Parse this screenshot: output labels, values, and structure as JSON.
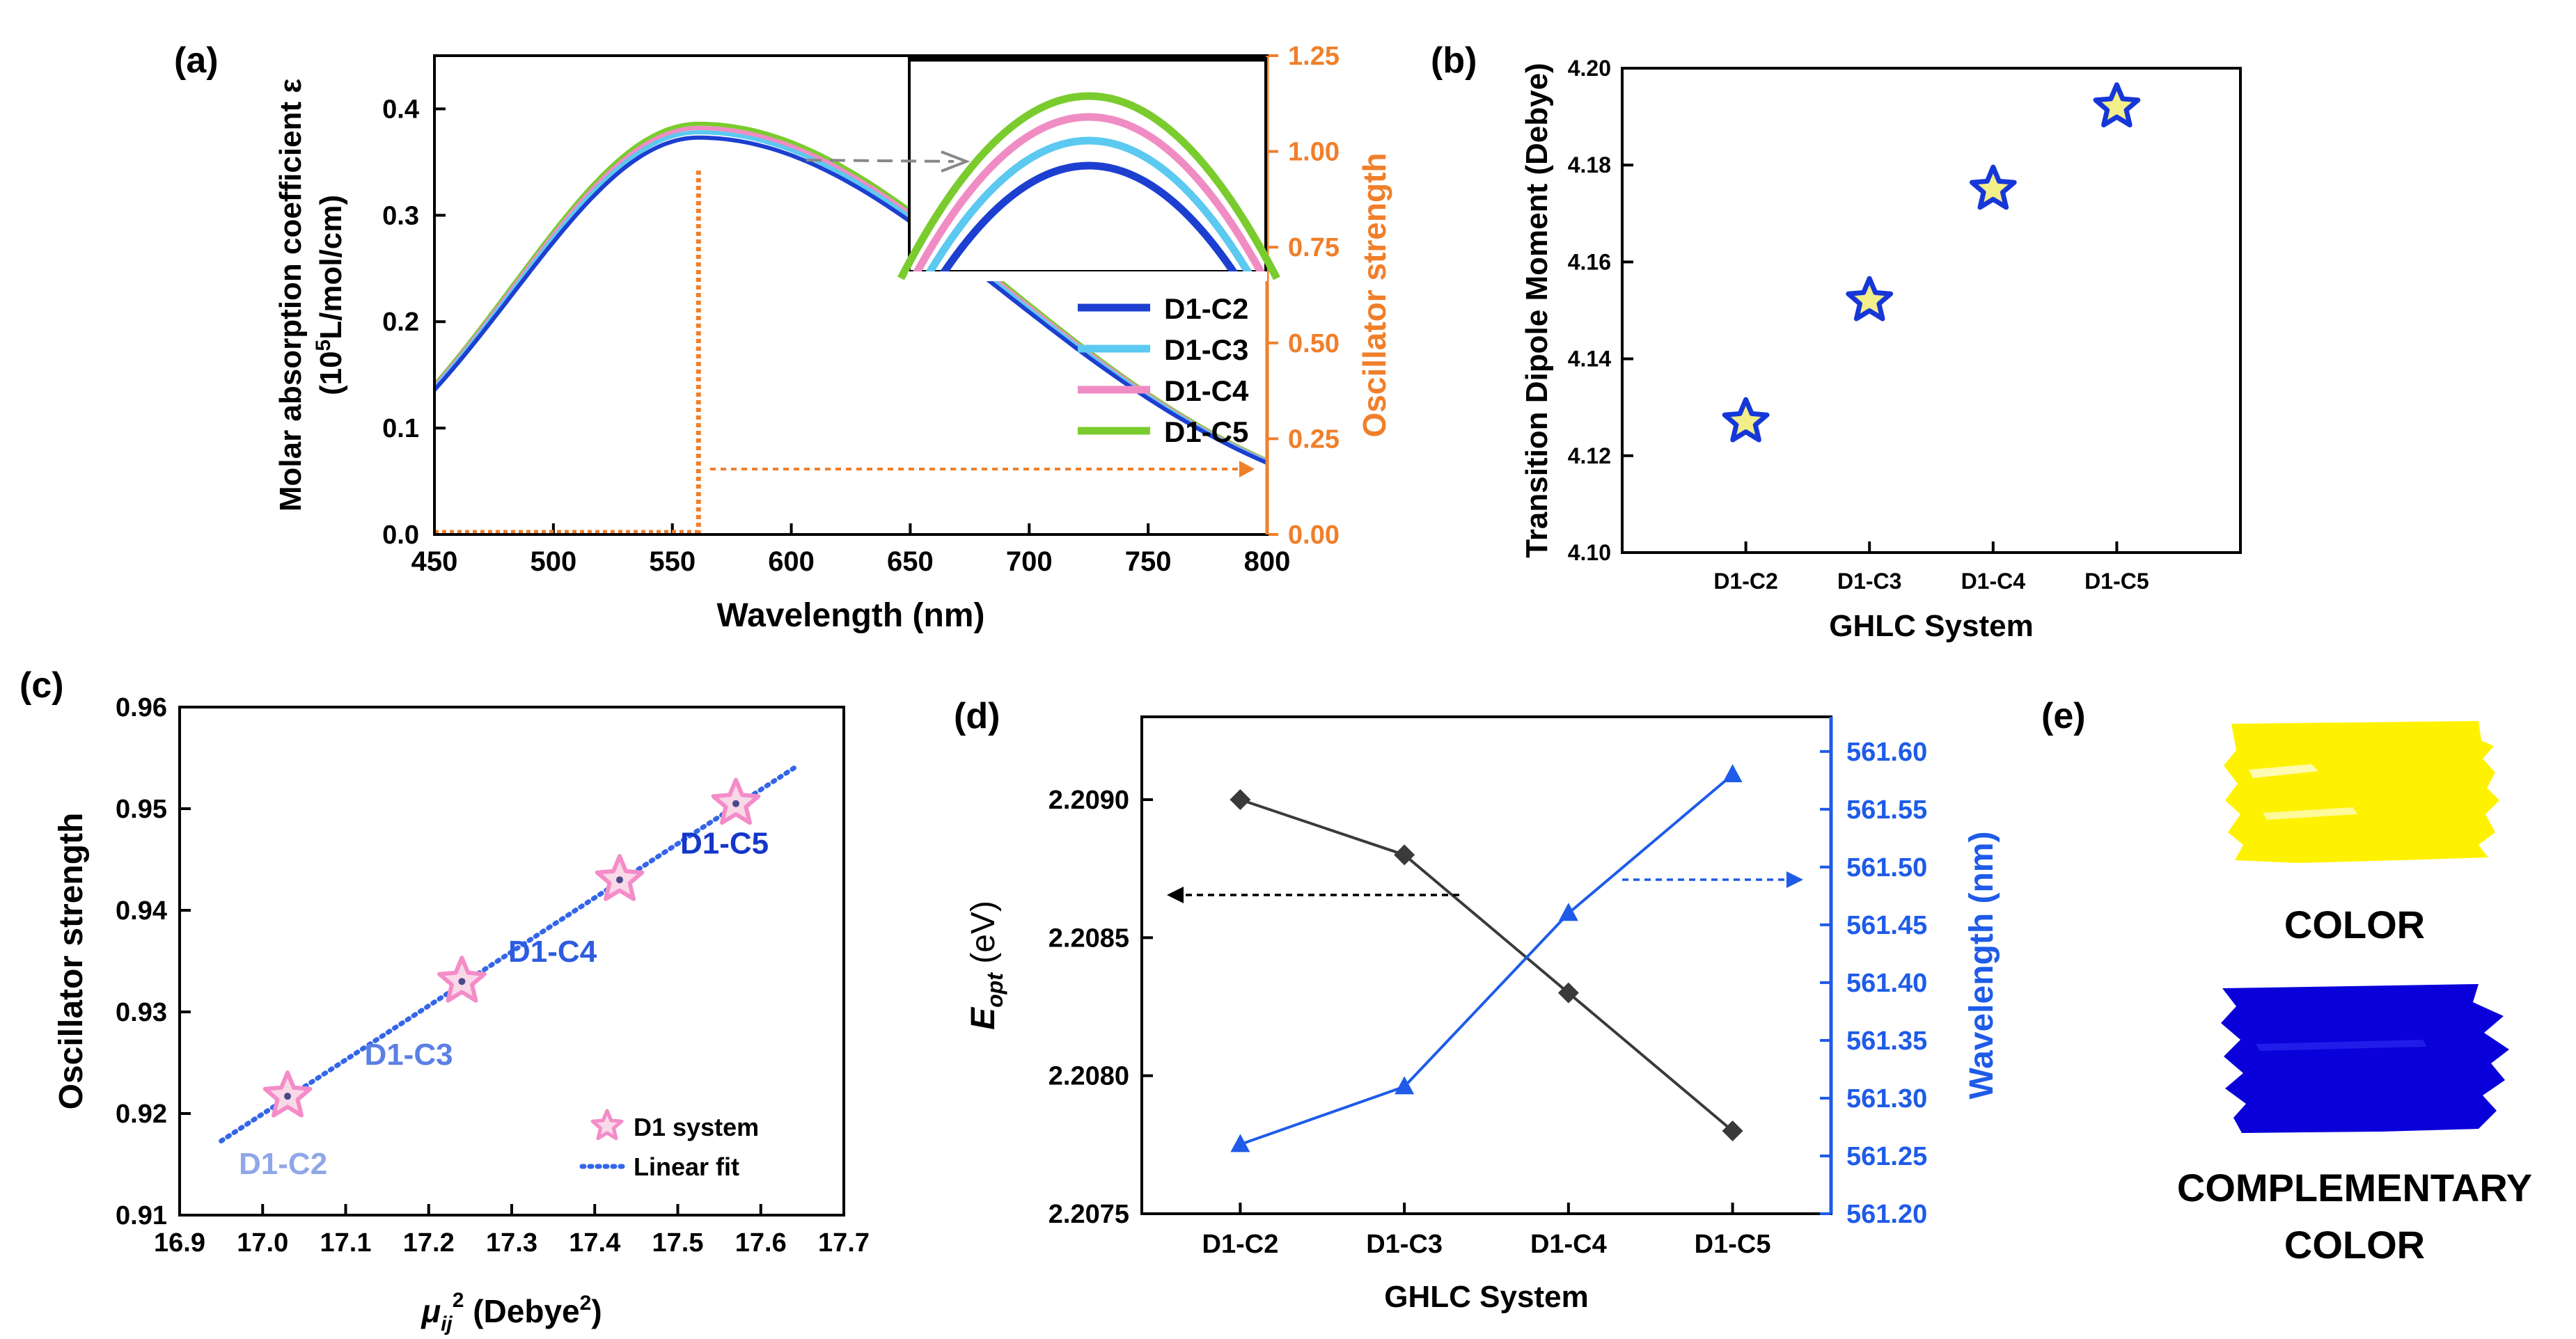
{
  "colors": {
    "axis": "#000000",
    "orange": "#F07F2A",
    "blue_star": "#1637D8",
    "star_fill": "#F2EE8A",
    "pink": "#F48CC8",
    "fit_blue": "#3466E8",
    "lbl_c2": "#8FA6E8",
    "lbl_c3": "#5B7FE4",
    "lbl_c4": "#2E5CE0",
    "lbl_c5": "#1437C9",
    "dark": "#3A3A3A",
    "blue_line": "#1E5BE8",
    "yellow": "#FFF200",
    "navy": "#0A00D9",
    "c2": "#1C3FD0",
    "c3": "#5CC9F0",
    "c4": "#F08CC4",
    "c5": "#7ACC2E"
  },
  "chart_data": [
    {
      "id": "a",
      "panel_label": "(a)",
      "type": "line",
      "xlabel": "Wavelength (nm)",
      "ylabel_line1": "Molar absorption coefficient ε",
      "ylabel_line2_pre": "(10",
      "ylabel_line2_sup": "5",
      "ylabel_line2_post": "L/mol/cm)",
      "y2label": "Oscillator strength",
      "xlim": [
        450,
        800
      ],
      "ylim": [
        0,
        0.45
      ],
      "y2lim": [
        0,
        1.25
      ],
      "xticks": [
        "450",
        "500",
        "550",
        "600",
        "650",
        "700",
        "750",
        "800"
      ],
      "yticks": [
        "0.0",
        "0.1",
        "0.2",
        "0.3",
        "0.4"
      ],
      "y2ticks": [
        "0.00",
        "0.25",
        "0.50",
        "0.75",
        "1.00",
        "1.25"
      ],
      "peak_nm": 561,
      "series": [
        {
          "name": "D1-C2",
          "peak": 0.373
        },
        {
          "name": "D1-C3",
          "peak": 0.378
        },
        {
          "name": "D1-C4",
          "peak": 0.382
        },
        {
          "name": "D1-C5",
          "peak": 0.386
        }
      ],
      "oscillator_line": {
        "x": 561,
        "value": 0.95
      }
    },
    {
      "id": "b",
      "panel_label": "(b)",
      "type": "scatter",
      "xlabel": "GHLC System",
      "ylabel": "Transition Dipole Moment (Debye)",
      "categories": [
        "D1-C2",
        "D1-C3",
        "D1-C4",
        "D1-C5"
      ],
      "values": [
        4.127,
        4.152,
        4.175,
        4.192
      ],
      "ylim": [
        4.1,
        4.2
      ],
      "yticks": [
        "4.10",
        "4.12",
        "4.14",
        "4.16",
        "4.18",
        "4.20"
      ]
    },
    {
      "id": "c",
      "panel_label": "(c)",
      "type": "scatter",
      "xlabel_sym": "μ",
      "xlabel_sub": "ij",
      "xlabel_sup": "2",
      "xlabel_rest": " (Debye",
      "xlabel_sup2": "2",
      "xlabel_end": ")",
      "ylabel": "Oscillator strength",
      "x": [
        17.03,
        17.24,
        17.43,
        17.57
      ],
      "y": [
        0.9217,
        0.933,
        0.943,
        0.9505
      ],
      "point_labels": [
        "D1-C2",
        "D1-C3",
        "D1-C4",
        "D1-C5"
      ],
      "fit": {
        "x": [
          16.95,
          17.64
        ],
        "y": [
          0.9173,
          0.954
        ]
      },
      "xlim": [
        16.9,
        17.7
      ],
      "ylim": [
        0.91,
        0.96
      ],
      "xticks": [
        "16.9",
        "17.0",
        "17.1",
        "17.2",
        "17.3",
        "17.4",
        "17.5",
        "17.6",
        "17.7"
      ],
      "yticks": [
        "0.91",
        "0.92",
        "0.93",
        "0.94",
        "0.95",
        "0.96"
      ],
      "legend": [
        {
          "label": "D1 system"
        },
        {
          "label": "Linear fit"
        }
      ]
    },
    {
      "id": "d",
      "panel_label": "(d)",
      "type": "line",
      "xlabel": "GHLC System",
      "ylabel_main": "E",
      "ylabel_sub": "opt",
      "ylabel_rest": " (eV)",
      "y2label": "Wavelength (nm)",
      "categories": [
        "D1-C2",
        "D1-C3",
        "D1-C4",
        "D1-C5"
      ],
      "series": [
        {
          "name": "Eopt",
          "values": [
            2.209,
            2.2088,
            2.2083,
            2.2078
          ]
        },
        {
          "name": "Wavelength",
          "values": [
            561.26,
            561.31,
            561.46,
            561.58
          ]
        }
      ],
      "ylim": [
        2.2075,
        2.2093
      ],
      "y2lim": [
        561.2,
        561.63
      ],
      "yticks": [
        "2.2075",
        "2.2080",
        "2.2085",
        "2.2090"
      ],
      "y2ticks": [
        "561.20",
        "561.25",
        "561.30",
        "561.35",
        "561.40",
        "561.45",
        "561.50",
        "561.55",
        "561.60"
      ]
    }
  ],
  "panel_e": {
    "panel_label": "(e)",
    "color_label": "COLOR",
    "comp_label_1": "COMPLEMENTARY",
    "comp_label_2": "COLOR"
  }
}
